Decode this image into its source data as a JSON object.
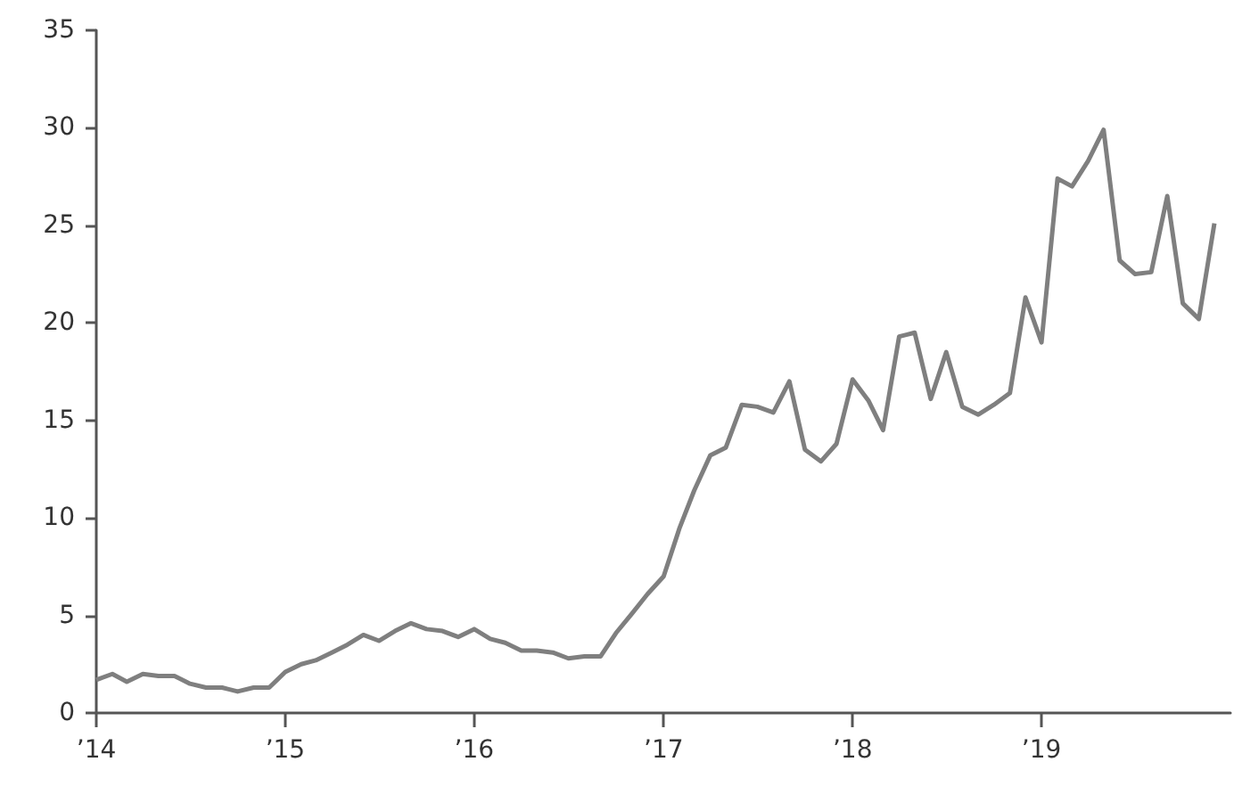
{
  "chart_data": {
    "type": "line",
    "x": [
      "2014-01",
      "2014-02",
      "2014-03",
      "2014-04",
      "2014-05",
      "2014-06",
      "2014-07",
      "2014-08",
      "2014-09",
      "2014-10",
      "2014-11",
      "2014-12",
      "2015-01",
      "2015-02",
      "2015-03",
      "2015-04",
      "2015-05",
      "2015-06",
      "2015-07",
      "2015-08",
      "2015-09",
      "2015-10",
      "2015-11",
      "2015-12",
      "2016-01",
      "2016-02",
      "2016-03",
      "2016-04",
      "2016-05",
      "2016-06",
      "2016-07",
      "2016-08",
      "2016-09",
      "2016-10",
      "2016-11",
      "2016-12",
      "2017-01",
      "2017-02",
      "2017-03",
      "2017-04",
      "2017-05",
      "2017-06",
      "2017-07",
      "2017-08",
      "2017-09",
      "2017-10",
      "2017-11",
      "2017-12",
      "2018-01",
      "2018-02",
      "2018-03",
      "2018-04",
      "2018-05",
      "2018-06",
      "2018-07",
      "2018-08",
      "2018-09",
      "2018-10",
      "2018-11",
      "2018-12",
      "2019-01",
      "2019-02",
      "2019-03",
      "2019-04",
      "2019-05",
      "2019-06",
      "2019-07",
      "2019-08",
      "2019-09",
      "2019-10",
      "2019-11",
      "2019-12"
    ],
    "series": [
      {
        "color": "#7f7f7f",
        "values": [
          1.7,
          2.0,
          1.6,
          2.0,
          1.9,
          1.9,
          1.5,
          1.3,
          1.3,
          1.1,
          1.3,
          1.3,
          2.1,
          2.5,
          2.7,
          3.1,
          3.5,
          4.0,
          3.7,
          4.2,
          4.6,
          4.3,
          4.2,
          3.9,
          4.3,
          3.8,
          3.6,
          3.2,
          3.2,
          3.1,
          2.8,
          2.9,
          2.9,
          4.1,
          5.1,
          6.1,
          7.0,
          9.5,
          11.4,
          13.2,
          13.6,
          15.8,
          15.7,
          15.4,
          17.0,
          13.5,
          12.9,
          13.8,
          17.1,
          16.0,
          14.5,
          19.3,
          19.5,
          16.1,
          18.5,
          15.7,
          15.3,
          15.8,
          16.4,
          21.3,
          19.0,
          27.4,
          27.0,
          28.3,
          29.9,
          23.2,
          22.5,
          22.6,
          26.5,
          21.0,
          20.2,
          25.1
        ]
      }
    ],
    "xlim": [
      "2014-01",
      "2020-01"
    ],
    "xticks": [
      {
        "value": "2014-01",
        "label": "’14"
      },
      {
        "value": "2015-01",
        "label": "’15"
      },
      {
        "value": "2016-01",
        "label": "’16"
      },
      {
        "value": "2017-01",
        "label": "’17"
      },
      {
        "value": "2018-01",
        "label": "’18"
      },
      {
        "value": "2019-01",
        "label": "’19"
      }
    ],
    "ylim": [
      0,
      35
    ],
    "yticks": [
      0,
      5,
      10,
      15,
      20,
      25,
      30,
      35
    ],
    "grid": false,
    "marker": "none",
    "line_style": "solid"
  }
}
